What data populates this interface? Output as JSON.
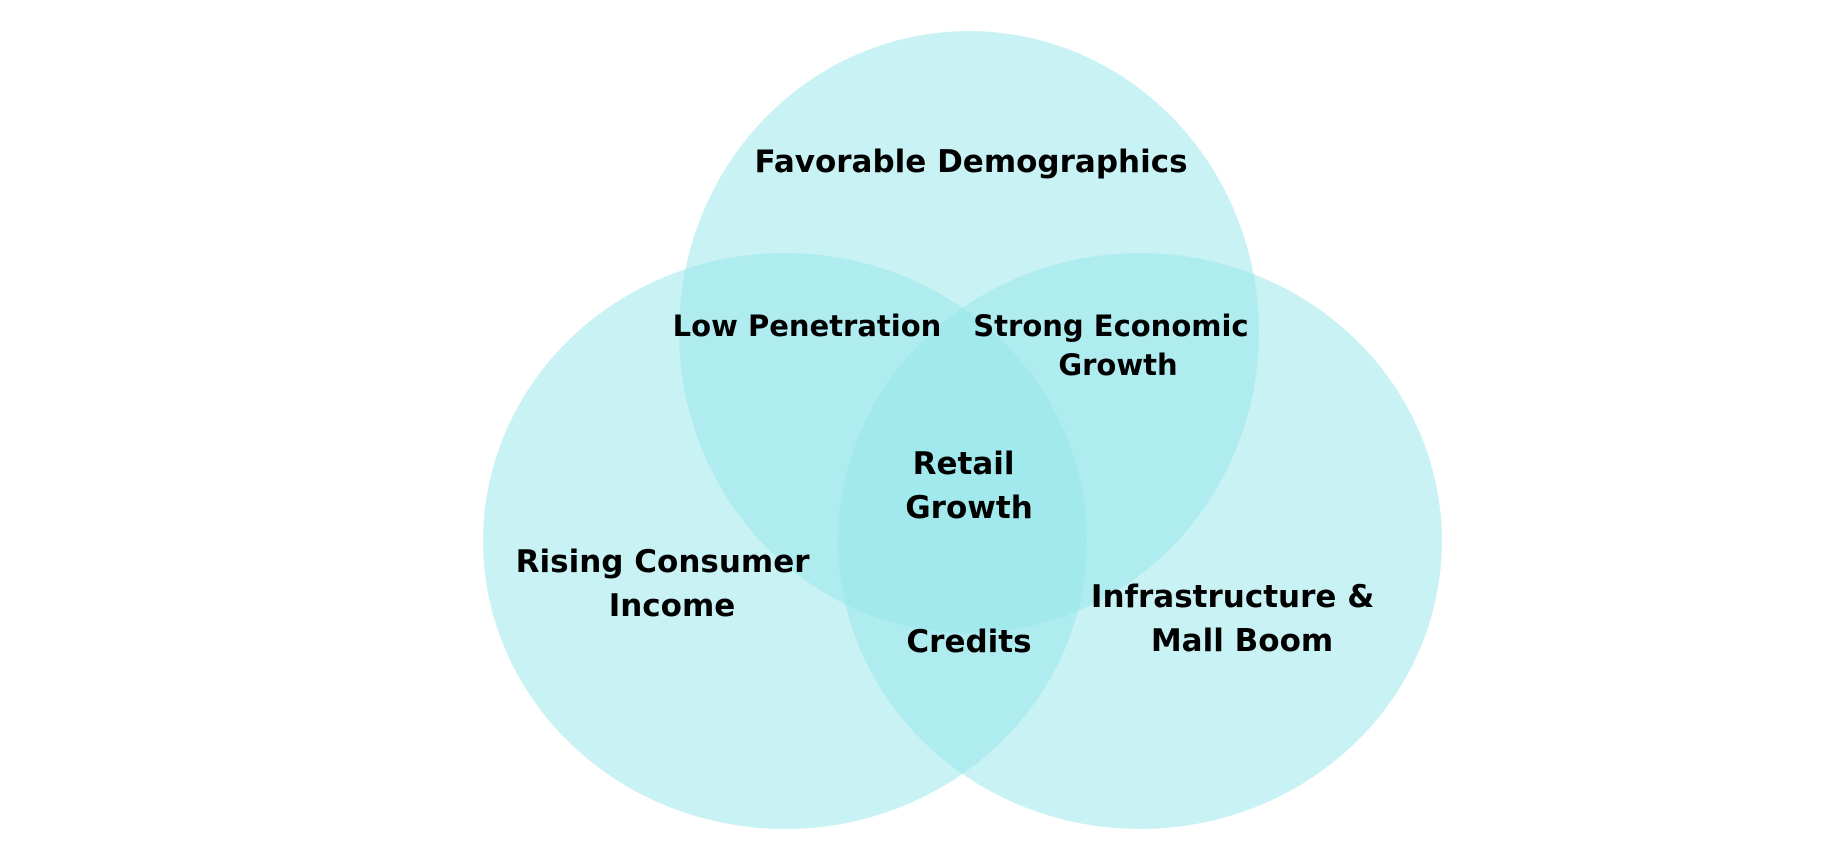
{
  "colors": {
    "circle_fill": "#93e6ea",
    "text": "#000000",
    "background": "#ffffff"
  },
  "sets": {
    "top": "Favorable Demographics",
    "left": [
      "Rising Consumer",
      "Income"
    ],
    "right": [
      "Infrastructure &",
      "Mall Boom"
    ]
  },
  "overlaps": {
    "top_left": "Low Penetration",
    "top_right": [
      "Strong Economic",
      "Growth"
    ],
    "left_right": "Credits",
    "center": [
      "Retail",
      "Growth"
    ]
  }
}
